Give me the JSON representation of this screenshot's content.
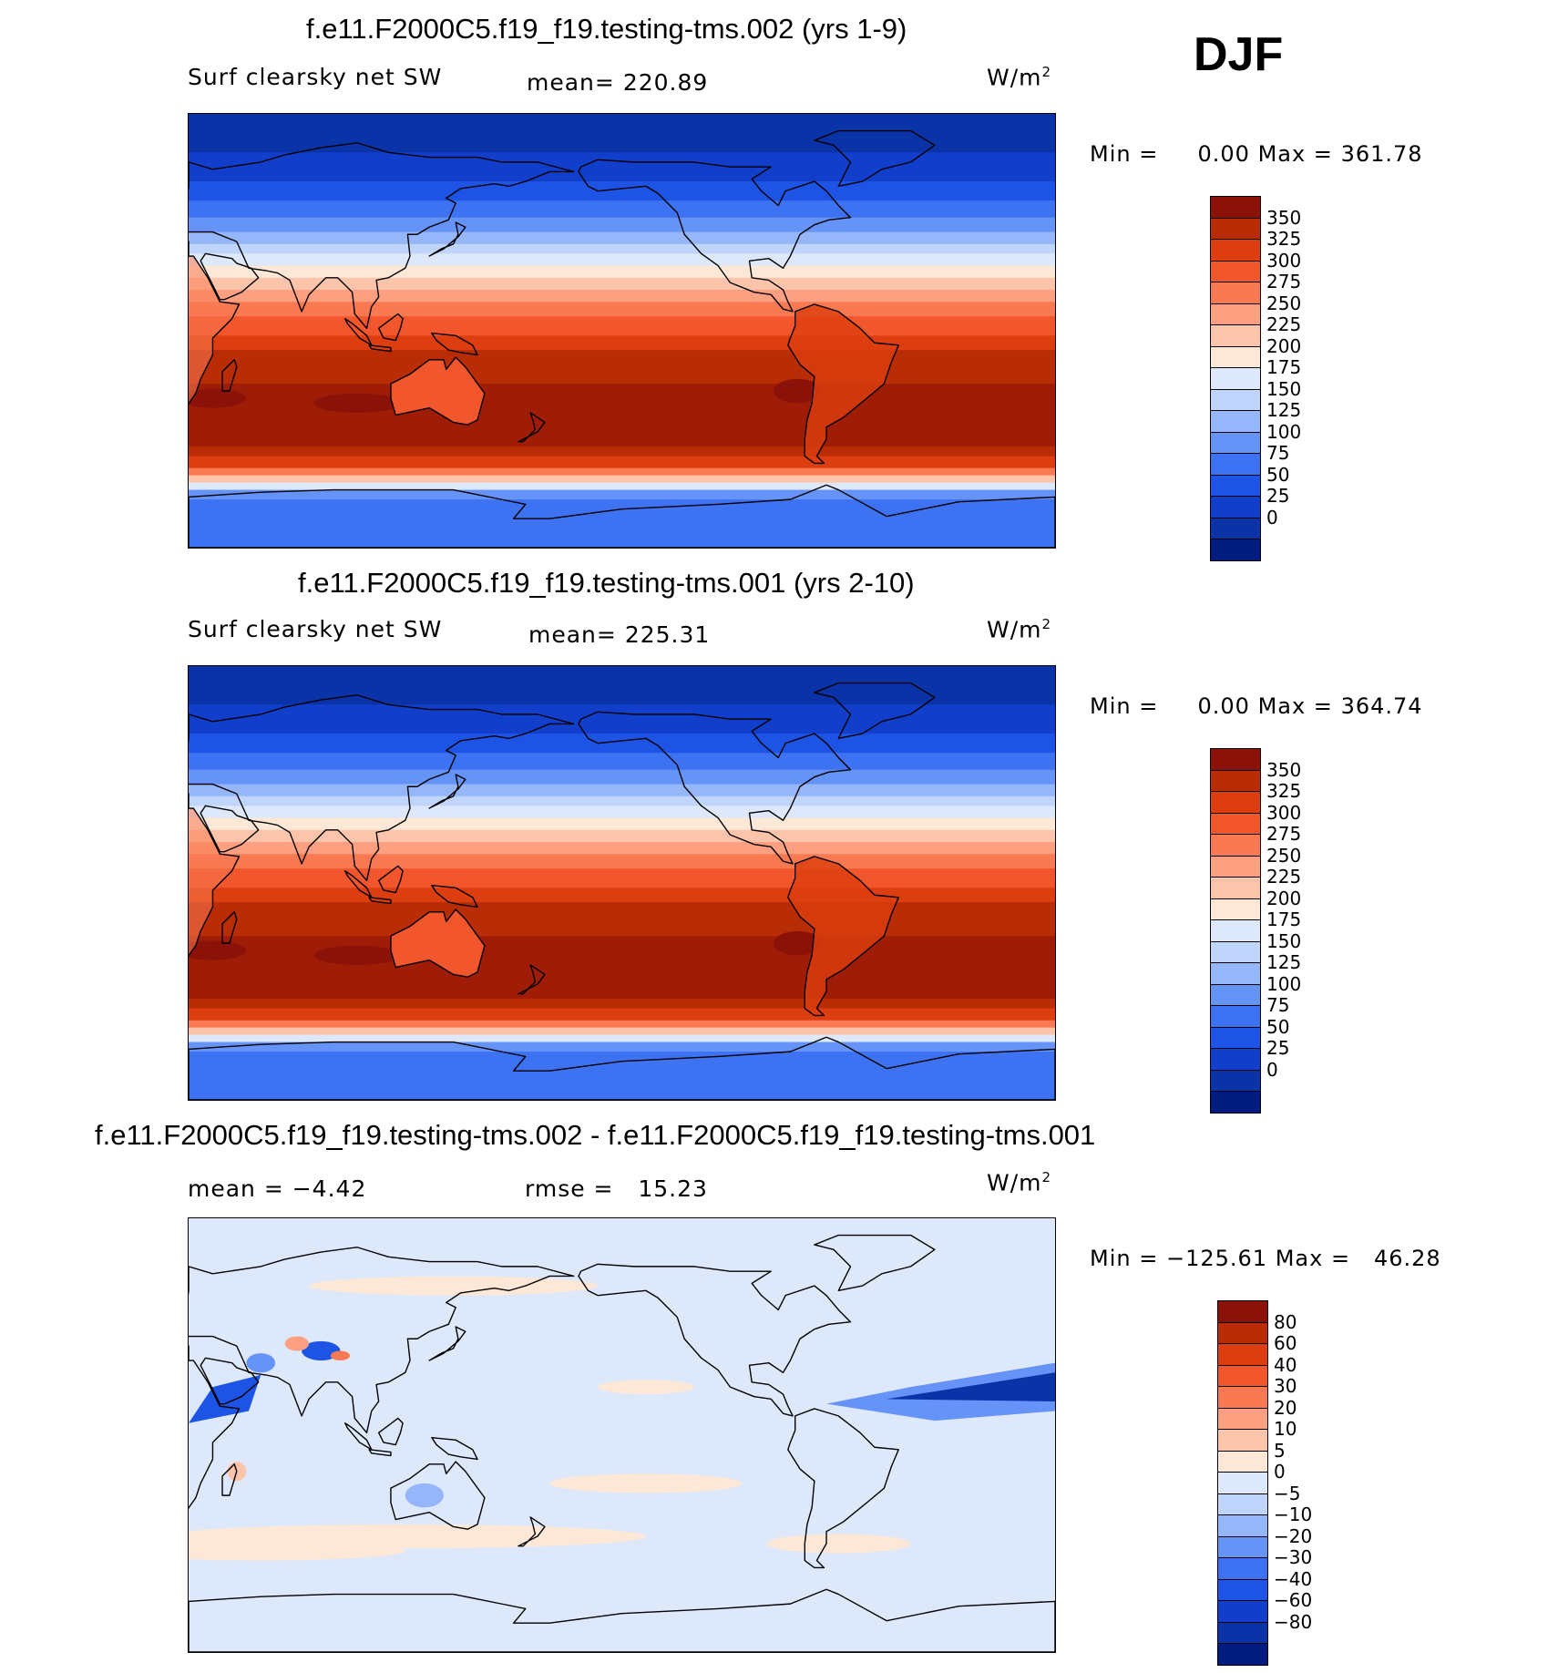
{
  "season": "DJF",
  "panels": [
    {
      "title": "f.e11.F2000C5.f19_f19.testing-tms.002 (yrs 1-9)",
      "left_label": "Surf  clearsky  net  SW",
      "stat_label": "mean=",
      "stat_value": "220.89",
      "units_text": "W/m",
      "units_sup": "2",
      "min_label": "Min  =",
      "min_value": "0.00",
      "max_label": "Max  =",
      "max_value": "361.78",
      "kind": "abs",
      "zonal": true,
      "colorbar": {
        "colors": [
          "#001c7f",
          "#0a33a8",
          "#113fcc",
          "#1d54e6",
          "#3d73f2",
          "#6693f7",
          "#96b6fa",
          "#c0d5fb",
          "#dde9fb",
          "#fde8d7",
          "#fcc5ab",
          "#fca081",
          "#f97a52",
          "#f2562c",
          "#dc3e0f",
          "#b82c06",
          "#8b1208"
        ],
        "labels": [
          "350",
          "325",
          "300",
          "275",
          "250",
          "225",
          "200",
          "175",
          "150",
          "125",
          "100",
          "75",
          "50",
          "25",
          "0"
        ]
      }
    },
    {
      "title": "f.e11.F2000C5.f19_f19.testing-tms.001 (yrs 2-10)",
      "left_label": "Surf  clearsky  net  SW",
      "stat_label": "mean=",
      "stat_value": "225.31",
      "units_text": "W/m",
      "units_sup": "2",
      "min_label": "Min  =",
      "min_value": "0.00",
      "max_label": "Max  =",
      "max_value": "364.74",
      "kind": "abs",
      "zonal": true,
      "colorbar": {
        "colors": [
          "#001c7f",
          "#0a33a8",
          "#113fcc",
          "#1d54e6",
          "#3d73f2",
          "#6693f7",
          "#96b6fa",
          "#c0d5fb",
          "#dde9fb",
          "#fde8d7",
          "#fcc5ab",
          "#fca081",
          "#f97a52",
          "#f2562c",
          "#dc3e0f",
          "#b82c06",
          "#8b1208"
        ],
        "labels": [
          "350",
          "325",
          "300",
          "275",
          "250",
          "225",
          "200",
          "175",
          "150",
          "125",
          "100",
          "75",
          "50",
          "25",
          "0"
        ]
      }
    },
    {
      "title": "f.e11.F2000C5.f19_f19.testing-tms.002 - f.e11.F2000C5.f19_f19.testing-tms.001",
      "left_label": "mean  =   −4.42",
      "stat_label": "rmse  =",
      "stat_value": "15.23",
      "units_text": "W/m",
      "units_sup": "2",
      "min_label": "Min  =",
      "min_value": "−125.61",
      "max_label": "Max  =",
      "max_value": "46.28",
      "kind": "diff",
      "zonal": false,
      "colorbar": {
        "colors": [
          "#001c7f",
          "#0a33a8",
          "#113fcc",
          "#1d54e6",
          "#3d73f2",
          "#6693f7",
          "#96b6fa",
          "#c0d5fb",
          "#dde9fb",
          "#fde8d7",
          "#fcc5ab",
          "#fca081",
          "#f97a52",
          "#f2562c",
          "#dc3e0f",
          "#b82c06",
          "#8b1208"
        ],
        "labels": [
          "80",
          "60",
          "40",
          "30",
          "20",
          "10",
          "5",
          "0",
          "−5",
          "−10",
          "−20",
          "−30",
          "−40",
          "−60",
          "−80"
        ]
      }
    }
  ]
}
